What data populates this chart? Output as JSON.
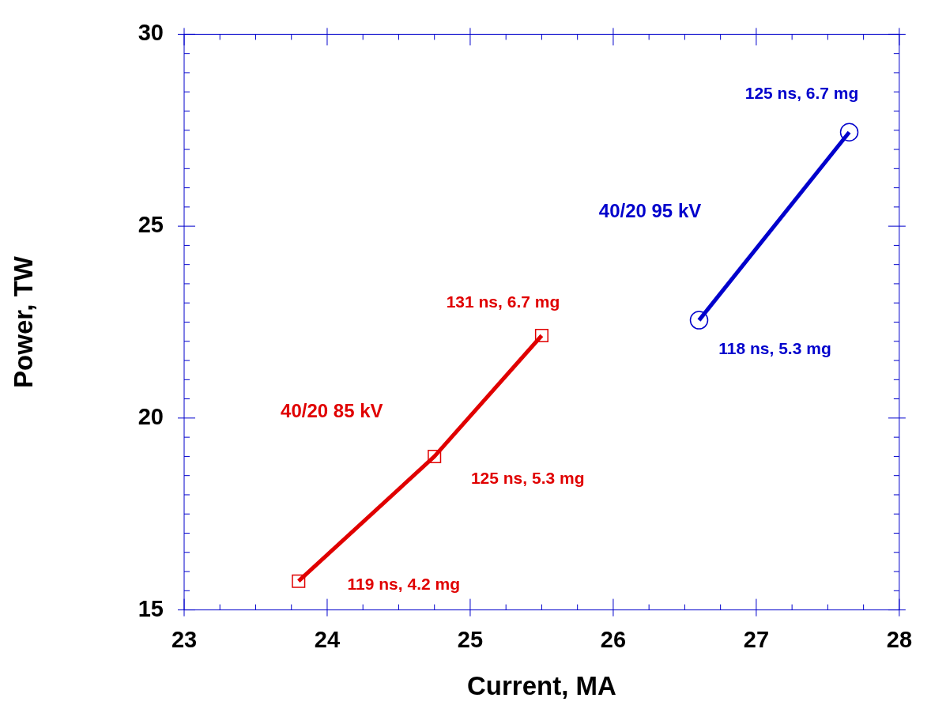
{
  "chart_data": {
    "type": "line",
    "xlabel": "Current, MA",
    "ylabel": "Power, TW",
    "xlim": [
      23,
      28
    ],
    "ylim": [
      15,
      30
    ],
    "xticks": [
      23,
      {
        "value": 23.25,
        "label": null
      },
      {
        "value": 23.5,
        "label": null
      },
      {
        "value": 23.75,
        "label": null
      },
      24,
      {
        "value": 24.25,
        "label": null
      },
      {
        "value": 24.5,
        "label": null
      },
      {
        "value": 24.75,
        "label": null
      },
      25,
      {
        "value": 25.25,
        "label": null
      },
      {
        "value": 25.5,
        "label": null
      },
      {
        "value": 25.75,
        "label": null
      },
      26,
      {
        "value": 26.25,
        "label": null
      },
      {
        "value": 26.5,
        "label": null
      },
      {
        "value": 26.75,
        "label": null
      },
      27,
      {
        "value": 27.25,
        "label": null
      },
      {
        "value": 27.5,
        "label": null
      },
      {
        "value": 27.75,
        "label": null
      },
      28
    ],
    "yticks": [
      15,
      {
        "value": 15.5,
        "label": null
      },
      {
        "value": 16,
        "label": null
      },
      {
        "value": 16.5,
        "label": null
      },
      {
        "value": 17,
        "label": null
      },
      {
        "value": 17.5,
        "label": null
      },
      {
        "value": 18,
        "label": null
      },
      {
        "value": 18.5,
        "label": null
      },
      {
        "value": 19,
        "label": null
      },
      {
        "value": 19.5,
        "label": null
      },
      20,
      {
        "value": 20.5,
        "label": null
      },
      {
        "value": 21,
        "label": null
      },
      {
        "value": 21.5,
        "label": null
      },
      {
        "value": 22,
        "label": null
      },
      {
        "value": 22.5,
        "label": null
      },
      {
        "value": 23,
        "label": null
      },
      {
        "value": 23.5,
        "label": null
      },
      {
        "value": 24,
        "label": null
      },
      {
        "value": 24.5,
        "label": null
      },
      25,
      {
        "value": 25.5,
        "label": null
      },
      {
        "value": 26,
        "label": null
      },
      {
        "value": 26.5,
        "label": null
      },
      {
        "value": 27,
        "label": null
      },
      {
        "value": 27.5,
        "label": null
      },
      {
        "value": 28,
        "label": null
      },
      {
        "value": 28.5,
        "label": null
      },
      {
        "value": 29,
        "label": null
      },
      {
        "value": 29.5,
        "label": null
      },
      30
    ],
    "series": [
      {
        "name": "40/20 85 kV",
        "color": "#e00000",
        "marker": "square",
        "x": [
          23.8,
          24.75,
          25.5
        ],
        "values": [
          15.75,
          19.0,
          22.15
        ]
      },
      {
        "name": "40/20 95 kV",
        "color": "#0000cc",
        "marker": "circle",
        "x": [
          26.6,
          27.65
        ],
        "values": [
          22.55,
          27.45
        ]
      }
    ],
    "annotations": [
      {
        "text": "119 ns, 4.2 mg",
        "x": 23.8,
        "y": 15.75
      },
      {
        "text": "125 ns, 5.3 mg",
        "x": 24.75,
        "y": 19.0
      },
      {
        "text": "131 ns, 6.7 mg",
        "x": 25.5,
        "y": 22.15
      },
      {
        "text": "118 ns, 5.3 mg",
        "x": 26.6,
        "y": 22.55
      },
      {
        "text": "125 ns, 6.7 mg",
        "x": 27.65,
        "y": 27.45
      }
    ]
  }
}
